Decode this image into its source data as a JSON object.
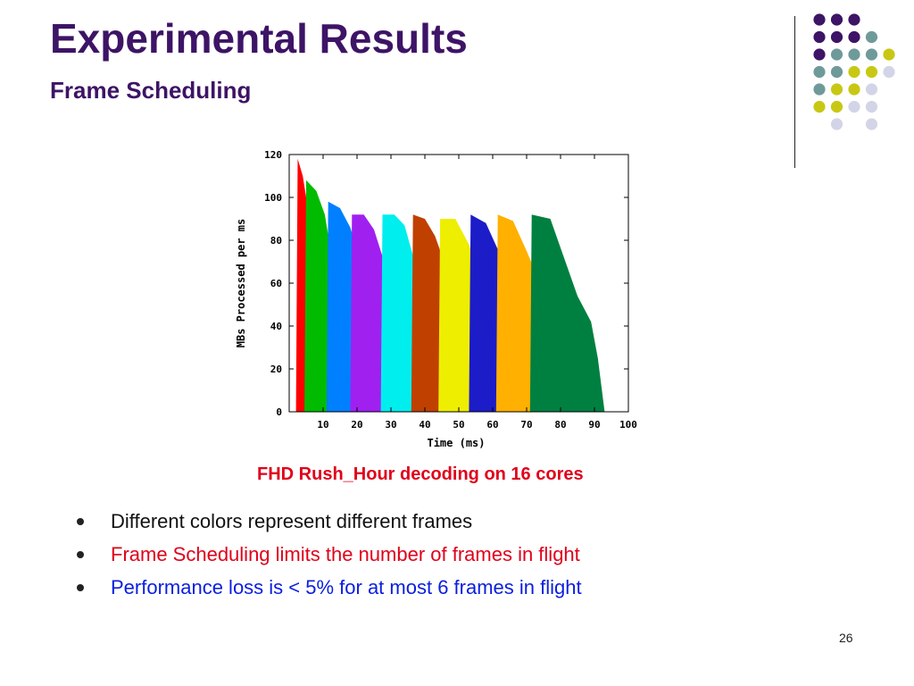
{
  "slide": {
    "title": "Experimental Results",
    "subtitle": "Frame Scheduling",
    "caption": "FHD Rush_Hour decoding on 16 cores",
    "page_number": "26",
    "bullets": [
      {
        "text": "Different colors represent different frames",
        "color": "#111111"
      },
      {
        "text": "Frame Scheduling limits the number of frames in flight",
        "color": "#e0001a"
      },
      {
        "text": "Performance loss is < 5% for at most 6 frames in flight",
        "color": "#0a1ee0"
      }
    ],
    "colors": {
      "title": "#3d1466",
      "caption": "#e0001a",
      "dot_palette": [
        "#3d1466",
        "#6f9a9a",
        "#c8c814",
        "#d4d4e8"
      ]
    }
  },
  "chart_data": {
    "type": "area",
    "xlabel": "Time (ms)",
    "ylabel": "MBs Processed per ms",
    "xlim": [
      0,
      100
    ],
    "ylim": [
      0,
      120
    ],
    "x_ticks": [
      "10",
      "20",
      "30",
      "40",
      "50",
      "60",
      "70",
      "80",
      "90",
      "100"
    ],
    "y_ticks": [
      "0",
      "20",
      "40",
      "60",
      "80",
      "100",
      "120"
    ],
    "grid": false,
    "series": [
      {
        "color": "#ff0000",
        "points": [
          [
            2,
            0
          ],
          [
            2.5,
            118
          ],
          [
            4,
            110
          ],
          [
            5.5,
            95
          ],
          [
            8,
            55
          ],
          [
            11,
            38
          ],
          [
            13,
            25
          ],
          [
            14.5,
            0
          ]
        ]
      },
      {
        "color": "#00bb00",
        "points": [
          [
            4.5,
            0
          ],
          [
            5,
            108
          ],
          [
            8,
            103
          ],
          [
            10.5,
            92
          ],
          [
            13,
            68
          ],
          [
            16,
            48
          ],
          [
            19,
            32
          ],
          [
            21.5,
            0
          ]
        ]
      },
      {
        "color": "#0080ff",
        "points": [
          [
            11,
            0
          ],
          [
            11.5,
            98
          ],
          [
            15,
            95
          ],
          [
            18,
            86
          ],
          [
            22,
            66
          ],
          [
            25,
            47
          ],
          [
            27,
            32
          ],
          [
            29,
            0
          ]
        ]
      },
      {
        "color": "#a020f0",
        "points": [
          [
            18,
            0
          ],
          [
            18.5,
            92
          ],
          [
            22,
            92
          ],
          [
            25,
            85
          ],
          [
            29,
            65
          ],
          [
            32,
            44
          ],
          [
            34,
            30
          ],
          [
            35.5,
            0
          ]
        ]
      },
      {
        "color": "#00eeee",
        "points": [
          [
            27,
            0
          ],
          [
            27.5,
            92
          ],
          [
            31,
            92
          ],
          [
            34,
            87
          ],
          [
            37,
            70
          ],
          [
            41,
            48
          ],
          [
            44,
            30
          ],
          [
            46,
            0
          ]
        ]
      },
      {
        "color": "#c04000",
        "points": [
          [
            36,
            0
          ],
          [
            36.5,
            92
          ],
          [
            40,
            90
          ],
          [
            43,
            82
          ],
          [
            47,
            64
          ],
          [
            50,
            44
          ],
          [
            53,
            32
          ],
          [
            55,
            0
          ]
        ]
      },
      {
        "color": "#eeee00",
        "points": [
          [
            44,
            0
          ],
          [
            44.5,
            90
          ],
          [
            49,
            90
          ],
          [
            53,
            78
          ],
          [
            56,
            62
          ],
          [
            59,
            45
          ],
          [
            62,
            33
          ],
          [
            63.5,
            0
          ]
        ]
      },
      {
        "color": "#1c1cc8",
        "points": [
          [
            53,
            0
          ],
          [
            53.5,
            92
          ],
          [
            58,
            88
          ],
          [
            62,
            74
          ],
          [
            66,
            60
          ],
          [
            70,
            48
          ],
          [
            72,
            38
          ],
          [
            73,
            0
          ]
        ]
      },
      {
        "color": "#ffb000",
        "points": [
          [
            61,
            0
          ],
          [
            61.5,
            92
          ],
          [
            66,
            89
          ],
          [
            70,
            75
          ],
          [
            74,
            60
          ],
          [
            78,
            48
          ],
          [
            81,
            38
          ],
          [
            83,
            0
          ]
        ]
      },
      {
        "color": "#008040",
        "points": [
          [
            71,
            0
          ],
          [
            71.5,
            92
          ],
          [
            77,
            90
          ],
          [
            81,
            72
          ],
          [
            85,
            54
          ],
          [
            89,
            42
          ],
          [
            91,
            25
          ],
          [
            93,
            0
          ]
        ]
      }
    ]
  }
}
